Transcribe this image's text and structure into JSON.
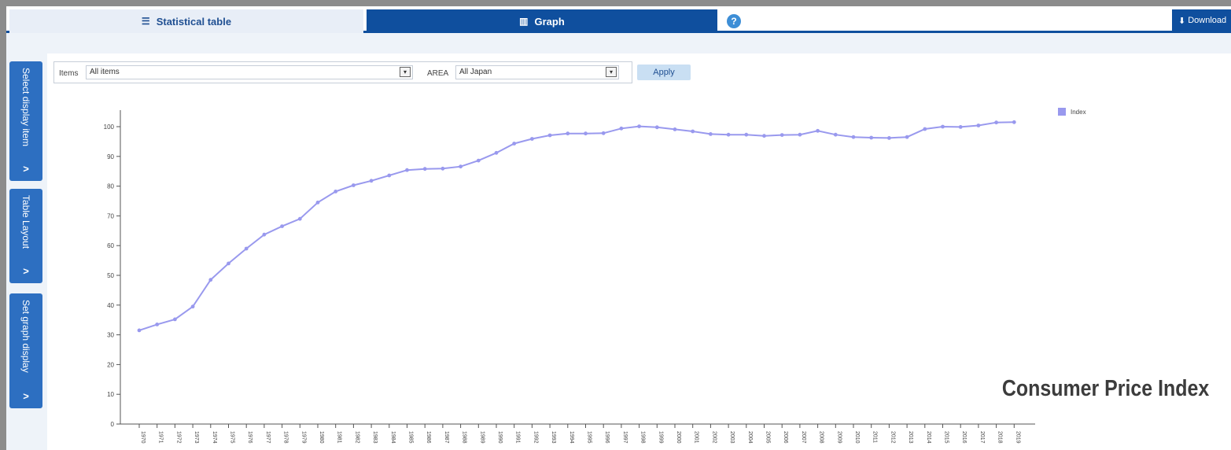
{
  "tabs": {
    "statistical_table": "Statistical table",
    "graph": "Graph",
    "help": "?",
    "download": "Download"
  },
  "icons": {
    "table_tab": "list-icon",
    "graph_tab": "bar-chart-icon",
    "help": "question-icon",
    "download": "download-icon",
    "side_chevron": "chevron-right-icon"
  },
  "sidebar": {
    "items": [
      {
        "label": "Select display item"
      },
      {
        "label": "Table Layout"
      },
      {
        "label": "Set graph display"
      }
    ]
  },
  "filters": {
    "items_label": "Items",
    "items_value": "All items",
    "area_label": "AREA",
    "area_value": "All Japan",
    "apply_label": "Apply"
  },
  "overlay_title": "Consumer Price Index",
  "colors": {
    "accent": "#0f4f9e",
    "series": "#9999ee"
  },
  "chart_data": {
    "type": "line",
    "x": [
      "1970",
      "1971",
      "1972",
      "1973",
      "1974",
      "1975",
      "1976",
      "1977",
      "1978",
      "1979",
      "1980",
      "1981",
      "1982",
      "1983",
      "1984",
      "1985",
      "1986",
      "1987",
      "1988",
      "1989",
      "1990",
      "1991",
      "1992",
      "1993",
      "1994",
      "1995",
      "1996",
      "1997",
      "1998",
      "1999",
      "2000",
      "2001",
      "2002",
      "2003",
      "2004",
      "2005",
      "2006",
      "2007",
      "2008",
      "2009",
      "2010",
      "2011",
      "2012",
      "2013",
      "2014",
      "2015",
      "2016",
      "2017",
      "2018",
      "2019"
    ],
    "series": [
      {
        "name": "Index",
        "values": [
          31.5,
          33.5,
          35.2,
          39.5,
          48.5,
          54.0,
          59.0,
          63.7,
          66.5,
          69.0,
          74.5,
          78.2,
          80.3,
          81.8,
          83.6,
          85.4,
          85.8,
          85.9,
          86.6,
          88.6,
          91.2,
          94.3,
          95.9,
          97.1,
          97.7,
          97.7,
          97.8,
          99.4,
          100.1,
          99.8,
          99.1,
          98.4,
          97.5,
          97.3,
          97.3,
          96.9,
          97.2,
          97.3,
          98.6,
          97.3,
          96.5,
          96.3,
          96.2,
          96.5,
          99.2,
          100.0,
          99.9,
          100.4,
          101.4,
          101.5
        ]
      }
    ],
    "ylim": [
      0,
      100
    ],
    "yticks": [
      0,
      10,
      20,
      30,
      40,
      50,
      60,
      70,
      80,
      90,
      100
    ],
    "grid": false,
    "legend": "top-right"
  }
}
